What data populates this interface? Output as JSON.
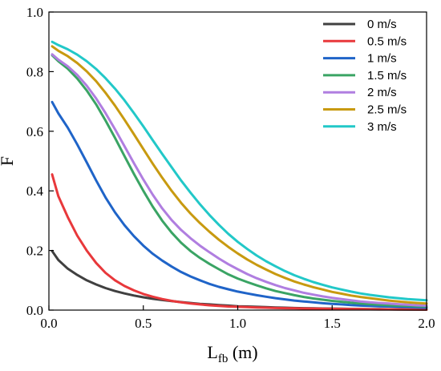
{
  "chart_data": {
    "type": "line",
    "xlabel_main": "L",
    "xlabel_sub": "fb",
    "xlabel_unit": " (m)",
    "ylabel": "F",
    "xlim": [
      0,
      2.0
    ],
    "ylim": [
      0,
      1.0
    ],
    "xticks": [
      "0.0",
      "0.5",
      "1.0",
      "1.5",
      "2.0"
    ],
    "yticks": [
      "0.0",
      "0.2",
      "0.4",
      "0.6",
      "0.8",
      "1.0"
    ],
    "grid": false,
    "legend_position": "top-right",
    "x": [
      0.0,
      0.05,
      0.1,
      0.15,
      0.2,
      0.25,
      0.3,
      0.35,
      0.4,
      0.45,
      0.5,
      0.55,
      0.6,
      0.65,
      0.7,
      0.75,
      0.8,
      0.85,
      0.9,
      0.95,
      1.0,
      1.05,
      1.1,
      1.15,
      1.2,
      1.25,
      1.3,
      1.35,
      1.4,
      1.45,
      1.5,
      1.55,
      1.6,
      1.65,
      1.7,
      1.75,
      1.8,
      1.85,
      1.9,
      1.95,
      2.0
    ],
    "series": [
      {
        "name": "0 m/s",
        "color": "#404040",
        "values": [
          0.198,
          0.168,
          0.139,
          0.118,
          0.1,
          0.086,
          0.074,
          0.064,
          0.056,
          0.049,
          0.043,
          0.038,
          0.034,
          0.03,
          0.027,
          0.024,
          0.021,
          0.019,
          0.017,
          0.015,
          0.013,
          0.012,
          0.011,
          0.01,
          0.009,
          0.008,
          0.007,
          0.0065,
          0.006,
          0.0055,
          0.005,
          0.0045,
          0.004,
          0.0037,
          0.0034,
          0.0031,
          0.0028,
          0.0025,
          0.0022,
          0.0019,
          0.0016
        ]
      },
      {
        "name": "0.5 m/s",
        "color": "#e8383b",
        "values": [
          0.455,
          0.382,
          0.312,
          0.25,
          0.2,
          0.158,
          0.125,
          0.1,
          0.081,
          0.066,
          0.054,
          0.045,
          0.037,
          0.031,
          0.026,
          0.022,
          0.019,
          0.016,
          0.014,
          0.012,
          0.011,
          0.01,
          0.009,
          0.008,
          0.007,
          0.0065,
          0.006,
          0.0055,
          0.005,
          0.0045,
          0.004,
          0.0037,
          0.0034,
          0.0031,
          0.0028,
          0.0025,
          0.0023,
          0.0021,
          0.0019,
          0.0017,
          0.0015
        ]
      },
      {
        "name": "1 m/s",
        "color": "#1f64c8",
        "values": [
          0.698,
          0.66,
          0.612,
          0.556,
          0.496,
          0.435,
          0.378,
          0.328,
          0.285,
          0.248,
          0.216,
          0.189,
          0.166,
          0.146,
          0.128,
          0.113,
          0.1,
          0.088,
          0.078,
          0.07,
          0.062,
          0.056,
          0.05,
          0.045,
          0.04,
          0.036,
          0.032,
          0.029,
          0.026,
          0.023,
          0.021,
          0.019,
          0.017,
          0.015,
          0.014,
          0.013,
          0.012,
          0.011,
          0.01,
          0.009,
          0.008
        ]
      },
      {
        "name": "1.5 m/s",
        "color": "#3aa464",
        "values": [
          0.855,
          0.835,
          0.81,
          0.777,
          0.737,
          0.69,
          0.636,
          0.578,
          0.517,
          0.457,
          0.4,
          0.347,
          0.3,
          0.26,
          0.226,
          0.198,
          0.175,
          0.155,
          0.137,
          0.12,
          0.106,
          0.094,
          0.083,
          0.073,
          0.064,
          0.057,
          0.05,
          0.044,
          0.039,
          0.035,
          0.031,
          0.028,
          0.025,
          0.022,
          0.02,
          0.018,
          0.016,
          0.015,
          0.014,
          0.013,
          0.012
        ]
      },
      {
        "name": "2 m/s",
        "color": "#b07ee0",
        "values": [
          0.858,
          0.84,
          0.818,
          0.789,
          0.753,
          0.71,
          0.661,
          0.607,
          0.55,
          0.493,
          0.438,
          0.387,
          0.341,
          0.302,
          0.269,
          0.241,
          0.216,
          0.194,
          0.173,
          0.154,
          0.137,
          0.121,
          0.107,
          0.095,
          0.084,
          0.074,
          0.066,
          0.058,
          0.052,
          0.046,
          0.041,
          0.037,
          0.033,
          0.029,
          0.026,
          0.024,
          0.022,
          0.02,
          0.018,
          0.016,
          0.015
        ]
      },
      {
        "name": "2.5 m/s",
        "color": "#c89a10",
        "values": [
          0.885,
          0.87,
          0.852,
          0.829,
          0.801,
          0.768,
          0.729,
          0.686,
          0.639,
          0.59,
          0.54,
          0.491,
          0.444,
          0.4,
          0.36,
          0.324,
          0.292,
          0.263,
          0.236,
          0.212,
          0.19,
          0.17,
          0.152,
          0.136,
          0.121,
          0.108,
          0.096,
          0.086,
          0.077,
          0.069,
          0.061,
          0.055,
          0.049,
          0.044,
          0.04,
          0.036,
          0.032,
          0.029,
          0.026,
          0.024,
          0.022
        ]
      },
      {
        "name": "3 m/s",
        "color": "#22c8c8",
        "values": [
          0.9,
          0.889,
          0.875,
          0.857,
          0.835,
          0.809,
          0.778,
          0.743,
          0.704,
          0.661,
          0.616,
          0.57,
          0.524,
          0.479,
          0.435,
          0.394,
          0.355,
          0.319,
          0.286,
          0.256,
          0.229,
          0.205,
          0.183,
          0.164,
          0.147,
          0.131,
          0.117,
          0.105,
          0.094,
          0.085,
          0.076,
          0.069,
          0.062,
          0.056,
          0.051,
          0.047,
          0.043,
          0.04,
          0.037,
          0.035,
          0.033
        ]
      }
    ]
  }
}
